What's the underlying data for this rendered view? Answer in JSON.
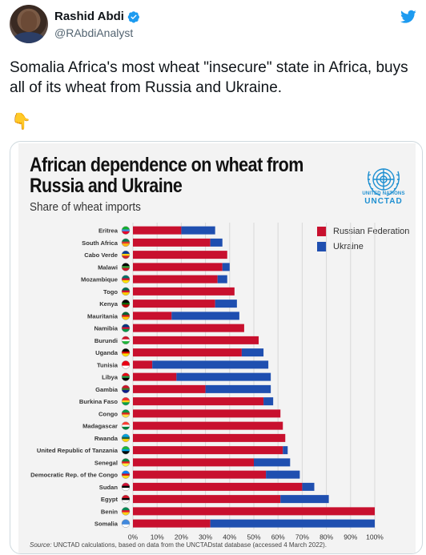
{
  "tweet": {
    "author_name": "Rashid Abdi",
    "author_handle": "@RAbdiAnalyst",
    "verified_icon": "verified-badge-icon",
    "platform_icon": "twitter-bird-icon",
    "text": "Somalia Africa's most wheat \"insecure\" state in Africa, buys all of its wheat from Russia and Ukraine.",
    "emoji": "👇"
  },
  "infographic": {
    "title": "African dependence on wheat from Russia and Ukraine",
    "subtitle": "Share of wheat imports",
    "logo_line1": "UNITED NATIONS",
    "logo_line2": "UNCTAD",
    "source_label": "Source:",
    "source_text": " UNCTAD calculations, based on data from the UNCTADstat database (accessed 4 March 2022).",
    "colors": {
      "russia": "#c8102e",
      "ukraine": "#1f4fb0",
      "grid": "#d8d8d8",
      "background": "#f3f3f3"
    }
  },
  "chart_data": {
    "type": "bar",
    "orientation": "horizontal",
    "stacked": true,
    "xlim": [
      0,
      100
    ],
    "xticks": [
      "0%",
      "10%",
      "20%",
      "30%",
      "40%",
      "50%",
      "60%",
      "70%",
      "80%",
      "90%",
      "100%"
    ],
    "legend_position": "top-right",
    "categories": [
      "Eritrea",
      "South Africa",
      "Cabo Verde",
      "Malawi",
      "Mozambique",
      "Togo",
      "Kenya",
      "Mauritania",
      "Namibia",
      "Burundi",
      "Uganda",
      "Tunisia",
      "Libya",
      "Gambia",
      "Burkina Faso",
      "Congo",
      "Madagascar",
      "Rwanda",
      "United Republic of Tanzania",
      "Senegal",
      "Democratic Rep. of the Congo",
      "Sudan",
      "Egypt",
      "Benin",
      "Somalia"
    ],
    "series": [
      {
        "name": "Russian Federation",
        "values": [
          20,
          32,
          39,
          37,
          35,
          42,
          34,
          16,
          46,
          52,
          45,
          8,
          18,
          30,
          54,
          61,
          62,
          63,
          62,
          50,
          55,
          70,
          61,
          100,
          32
        ]
      },
      {
        "name": "Ukraine",
        "values": [
          14,
          5,
          0,
          3,
          4,
          0,
          9,
          28,
          0,
          0,
          9,
          48,
          39,
          27,
          4,
          0,
          0,
          0,
          2,
          15,
          14,
          5,
          20,
          0,
          68
        ]
      }
    ]
  }
}
